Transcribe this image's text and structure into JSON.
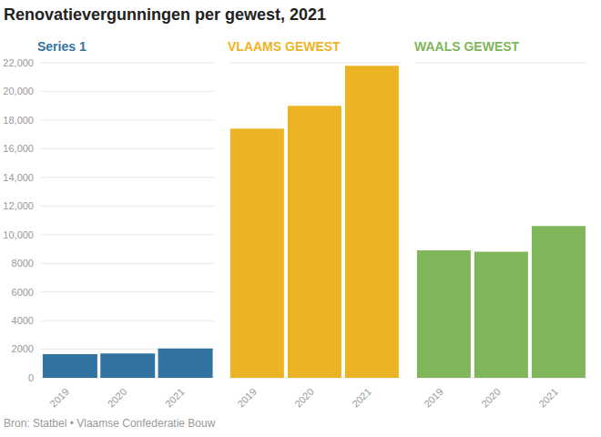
{
  "chart_data": {
    "type": "bar",
    "title": "Renovatievergunningen per gewest, 2021",
    "categories": [
      "2019",
      "2020",
      "2021"
    ],
    "series": [
      {
        "name": "Series 1",
        "color": "#3274a1",
        "values": [
          1650,
          1700,
          2050
        ]
      },
      {
        "name": "VLAAMS GEWEST",
        "color": "#ecb424",
        "values": [
          17400,
          19000,
          21800
        ]
      },
      {
        "name": "WAALS GEWEST",
        "color": "#7fb65a",
        "values": [
          8900,
          8800,
          10600
        ]
      }
    ],
    "ylim": [
      0,
      22000
    ],
    "yticks": [
      0,
      2000,
      4000,
      6000,
      8000,
      {
        "value": 10000,
        "label": "10,000"
      },
      {
        "value": 12000,
        "label": "12,000"
      },
      {
        "value": 14000,
        "label": "14,000"
      },
      {
        "value": 16000,
        "label": "16,000"
      },
      {
        "value": 18000,
        "label": "18,000"
      },
      {
        "value": 20000,
        "label": "20,000"
      },
      {
        "value": 22000,
        "label": "22,000"
      }
    ],
    "grid": true,
    "source": "Bron: Statbel • Vlaamse Confederatie Bouw"
  }
}
